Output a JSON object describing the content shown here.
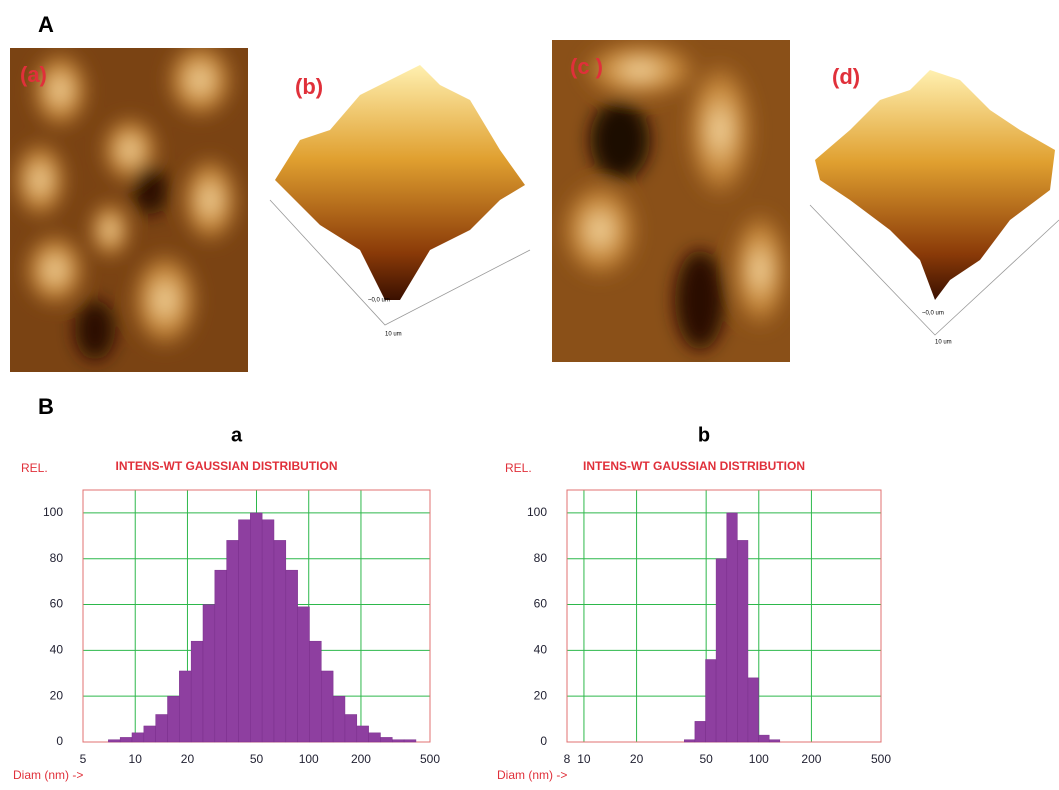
{
  "figure": {
    "section_a": "A",
    "section_b": "B",
    "afm_labels": [
      "(a)",
      "(b)",
      "(c )",
      "(d)"
    ],
    "surface_labels": [
      "~0,0 um",
      "10 um"
    ]
  },
  "chart_data": [
    {
      "type": "histogram",
      "panel_label": "a",
      "title": "INTENS-WT GAUSSIAN DISTRIBUTION",
      "ylabel": "REL.",
      "xlabel": "Diam (nm) ->",
      "xscale": "log",
      "color": "#8e3fa0",
      "grid": true,
      "grid_color": "#2db84b",
      "bins": [
        7,
        8.19,
        9.58,
        11.21,
        13.12,
        15.35,
        17.96,
        21.01,
        24.58,
        28.76,
        33.65,
        39.37,
        46.06,
        53.89,
        63.05,
        73.77,
        86.31,
        100.98,
        118.15,
        138.24,
        161.74,
        189.24,
        221.41,
        259.05,
        303.09,
        354.61,
        414.89
      ],
      "values": [
        1,
        2,
        4,
        7,
        12,
        20,
        31,
        44,
        60,
        75,
        88,
        97,
        100,
        97,
        88,
        75,
        59,
        44,
        31,
        20,
        12,
        7,
        4,
        2,
        1,
        1
      ],
      "xlim": [
        5,
        500
      ],
      "xticks": [
        5,
        10,
        20,
        50,
        100,
        200,
        500
      ],
      "ylim": [
        0,
        110
      ],
      "yticks": [
        0,
        20,
        40,
        60,
        80,
        100
      ]
    },
    {
      "type": "histogram",
      "panel_label": "b",
      "title": "INTENS-WT GAUSSIAN DISTRIBUTION",
      "ylabel": "REL.",
      "xlabel": "Diam (nm) ->",
      "xscale": "log",
      "color": "#8e3fa0",
      "grid": true,
      "grid_color": "#2db84b",
      "bins": [
        37.5,
        43.1,
        49.6,
        57.0,
        65.6,
        75.4,
        86.7,
        99.7,
        114.7,
        131.9
      ],
      "values": [
        1,
        9,
        36,
        80,
        100,
        88,
        28,
        3,
        1
      ],
      "xlim": [
        8,
        500
      ],
      "xticks": [
        8,
        10,
        20,
        50,
        100,
        200,
        500
      ],
      "ylim": [
        0,
        110
      ],
      "yticks": [
        0,
        20,
        40,
        60,
        80,
        100
      ]
    }
  ]
}
